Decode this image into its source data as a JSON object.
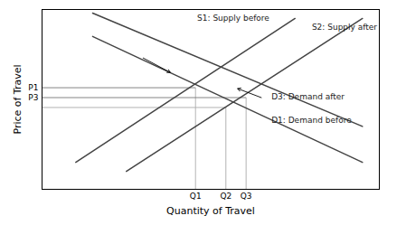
{
  "chart_data": {
    "type": "line",
    "xlabel": "Quantity of Travel",
    "ylabel": "Price of Travel",
    "xlim": [
      0,
      10
    ],
    "ylim": [
      0,
      10
    ],
    "xticks": [],
    "yticks": [],
    "tick_labels": false,
    "grid": false,
    "series": [
      {
        "name": "S1: Supply before",
        "color": "#444444",
        "x": [
          1.0,
          7.5
        ],
        "values": [
          1.5,
          9.5
        ],
        "label_x": 4.6,
        "label_y": 9.7
      },
      {
        "name": "S2: Supply after",
        "color": "#444444",
        "x": [
          2.5,
          9.5
        ],
        "values": [
          1.0,
          9.5
        ],
        "label_x": 8.0,
        "label_y": 9.2
      },
      {
        "name": "D1: Demand before",
        "color": "#444444",
        "x": [
          1.5,
          9.5
        ],
        "values": [
          8.5,
          1.5
        ],
        "label_x": 6.8,
        "label_y": 4.0
      },
      {
        "name": "D3: Demand after",
        "color": "#444444",
        "x": [
          1.5,
          9.5
        ],
        "values": [
          9.8,
          3.5
        ],
        "label_x": 6.8,
        "label_y": 5.3
      }
    ],
    "reference_points": [
      {
        "x": 4.55,
        "x_label": "Q1",
        "y": 5.65,
        "y_label": "P1",
        "hline_color": "#777777",
        "vline_color": "#aaaaaa"
      },
      {
        "x": 5.45,
        "x_label": "Q2",
        "y": 4.55,
        "hline_color": "#aaaaaa",
        "vline_color": "#aaaaaa"
      },
      {
        "x": 6.05,
        "x_label": "Q3",
        "y": 5.1,
        "y_label": "P3",
        "hline_color": "#777777",
        "vline_color": "#aaaaaa"
      }
    ],
    "arrows": [
      {
        "x1": 3.0,
        "y1": 7.3,
        "x2": 3.8,
        "y2": 6.5
      },
      {
        "x1": 6.5,
        "y1": 5.1,
        "x2": 5.8,
        "y2": 5.6
      }
    ]
  }
}
